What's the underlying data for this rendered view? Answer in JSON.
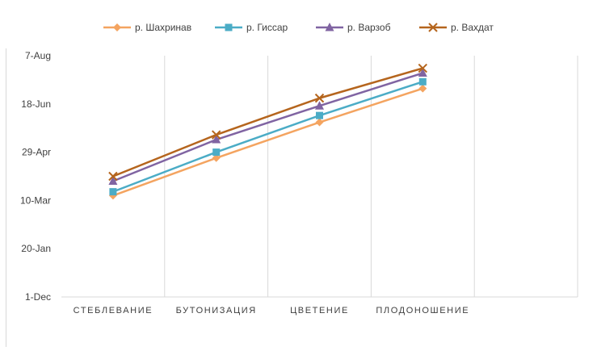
{
  "chart_data": {
    "type": "line",
    "categories": [
      "СТЕБЛЕВАНИЕ",
      "БУТОНИЗАЦИЯ",
      "ЦВЕТЕНИЕ",
      "ПЛОДОНОШЕНИЕ"
    ],
    "y_axis": {
      "type": "date",
      "min": "2019-12-01",
      "max": "2020-08-07",
      "ticks": [
        {
          "value": "2019-12-01",
          "label": "1-Dec"
        },
        {
          "value": "2020-01-20",
          "label": "20-Jan"
        },
        {
          "value": "2020-03-10",
          "label": "10-Mar"
        },
        {
          "value": "2020-04-29",
          "label": "29-Apr"
        },
        {
          "value": "2020-06-18",
          "label": "18-Jun"
        },
        {
          "value": "2020-08-07",
          "label": "7-Aug"
        }
      ]
    },
    "series": [
      {
        "name": "р. Шахринав",
        "color": "#F4A460",
        "marker": "diamond",
        "values": [
          "2020-03-15",
          "2020-04-23",
          "2020-05-30",
          "2020-07-04"
        ]
      },
      {
        "name": "р. Гиссар",
        "color": "#4BACC6",
        "marker": "square",
        "values": [
          "2020-03-19",
          "2020-04-29",
          "2020-06-06",
          "2020-07-11"
        ]
      },
      {
        "name": "р. Варзоб",
        "color": "#8064A2",
        "marker": "triangle",
        "values": [
          "2020-03-30",
          "2020-05-12",
          "2020-06-16",
          "2020-07-20"
        ]
      },
      {
        "name": "р. Вахдат",
        "color": "#B5651D",
        "marker": "x",
        "values": [
          "2020-04-04",
          "2020-05-17",
          "2020-06-24",
          "2020-07-25"
        ]
      }
    ],
    "grid": {
      "vertical": true,
      "horizontal": false
    },
    "legend_position": "top"
  }
}
